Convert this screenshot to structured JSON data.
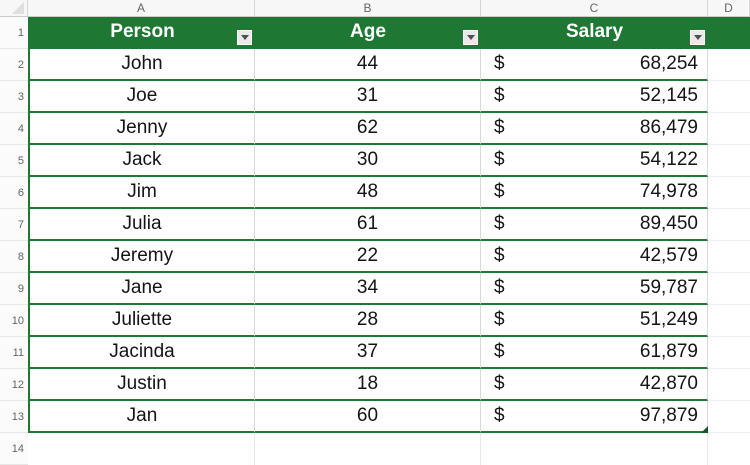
{
  "sheet": {
    "column_letters": [
      "A",
      "B",
      "C",
      "D"
    ],
    "header_row_number": "1",
    "partial_row_number": "14",
    "colors": {
      "table_header_green": "#1E7833",
      "row_border_green": "#1E7833",
      "gridline_gray": "#D9D9D9"
    },
    "table": {
      "headers": [
        {
          "label": "Person"
        },
        {
          "label": "Age"
        },
        {
          "label": "Salary"
        }
      ],
      "rows": [
        {
          "n": "2",
          "person": "John",
          "age": "44",
          "cur": "$",
          "salary": "68,254"
        },
        {
          "n": "3",
          "person": "Joe",
          "age": "31",
          "cur": "$",
          "salary": "52,145"
        },
        {
          "n": "4",
          "person": "Jenny",
          "age": "62",
          "cur": "$",
          "salary": "86,479"
        },
        {
          "n": "5",
          "person": "Jack",
          "age": "30",
          "cur": "$",
          "salary": "54,122"
        },
        {
          "n": "6",
          "person": "Jim",
          "age": "48",
          "cur": "$",
          "salary": "74,978"
        },
        {
          "n": "7",
          "person": "Julia",
          "age": "61",
          "cur": "$",
          "salary": "89,450"
        },
        {
          "n": "8",
          "person": "Jeremy",
          "age": "22",
          "cur": "$",
          "salary": "42,579"
        },
        {
          "n": "9",
          "person": "Jane",
          "age": "34",
          "cur": "$",
          "salary": "59,787"
        },
        {
          "n": "10",
          "person": "Juliette",
          "age": "28",
          "cur": "$",
          "salary": "51,249"
        },
        {
          "n": "11",
          "person": "Jacinda",
          "age": "37",
          "cur": "$",
          "salary": "61,879"
        },
        {
          "n": "12",
          "person": "Justin",
          "age": "18",
          "cur": "$",
          "salary": "42,870"
        },
        {
          "n": "13",
          "person": "Jan",
          "age": "60",
          "cur": "$",
          "salary": "97,879"
        }
      ]
    }
  }
}
